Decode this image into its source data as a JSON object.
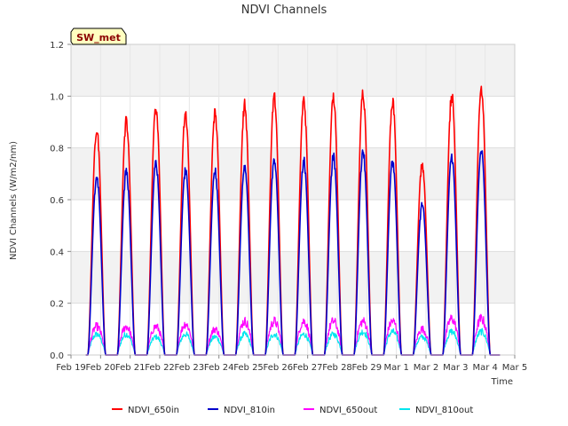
{
  "chart_data": {
    "type": "line",
    "title": "NDVI Channels",
    "xlabel": "Time",
    "ylabel": "NDVI Channels (W/m2/nm)",
    "ylim": [
      0.0,
      1.2
    ],
    "yticks": [
      "0.0",
      "0.2",
      "0.4",
      "0.6",
      "0.8",
      "1.0",
      "1.2"
    ],
    "ytick_values": [
      0.0,
      0.2,
      0.4,
      0.6,
      0.8,
      1.0,
      1.2
    ],
    "xlim": [
      0,
      15
    ],
    "xticks": [
      "Feb 19",
      "Feb 20",
      "Feb 21",
      "Feb 22",
      "Feb 23",
      "Feb 24",
      "Feb 25",
      "Feb 26",
      "Feb 27",
      "Feb 28",
      "Feb 29",
      "Mar 1",
      "Mar 2",
      "Mar 3",
      "Mar 4",
      "Mar 5"
    ],
    "day_centers": [
      0.87,
      1.87,
      2.87,
      3.87,
      4.87,
      5.87,
      6.87,
      7.87,
      8.87,
      9.87,
      10.87,
      11.87,
      12.87,
      13.87
    ],
    "series": [
      {
        "name": "NDVI_650in",
        "color": "#ff0000",
        "peaks": [
          0.89,
          0.92,
          0.97,
          0.95,
          0.95,
          0.98,
          1.01,
          1.0,
          1.01,
          1.03,
          1.0,
          0.75,
          1.02,
          1.05
        ]
      },
      {
        "name": "NDVI_810in",
        "color": "#0000cc",
        "peaks": [
          0.7,
          0.72,
          0.75,
          0.72,
          0.72,
          0.74,
          0.77,
          0.76,
          0.78,
          0.8,
          0.76,
          0.59,
          0.78,
          0.8
        ]
      },
      {
        "name": "NDVI_650out",
        "color": "#ff00ff",
        "peaks": [
          0.11,
          0.11,
          0.11,
          0.12,
          0.1,
          0.13,
          0.13,
          0.13,
          0.13,
          0.13,
          0.13,
          0.1,
          0.14,
          0.14
        ]
      },
      {
        "name": "NDVI_810out",
        "color": "#00e5ee",
        "peaks": [
          0.08,
          0.08,
          0.07,
          0.08,
          0.07,
          0.08,
          0.08,
          0.08,
          0.08,
          0.09,
          0.09,
          0.07,
          0.09,
          0.09
        ]
      }
    ],
    "legend_position": "bottom",
    "badge": "SW_met",
    "grid": true
  }
}
